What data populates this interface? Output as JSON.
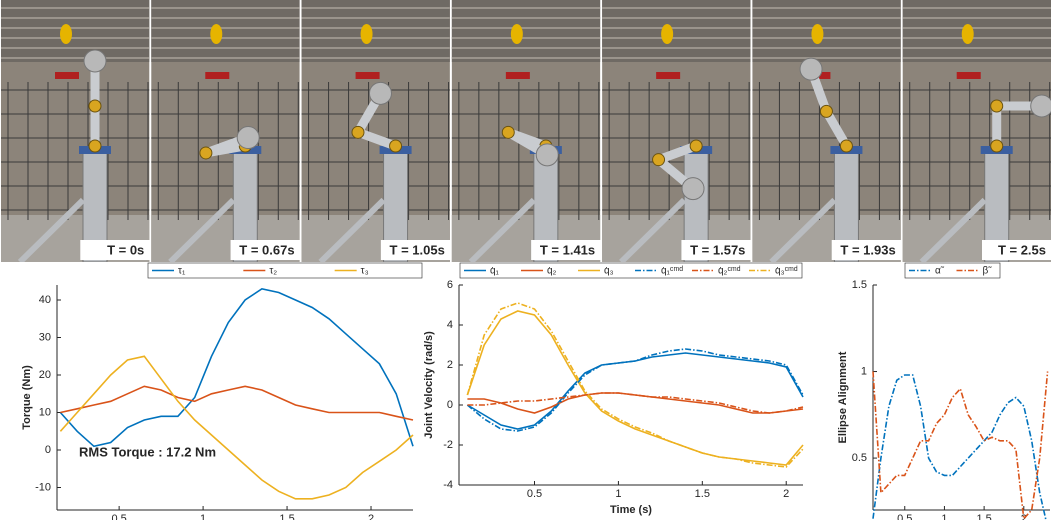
{
  "frames": [
    {
      "label": "T = 0s"
    },
    {
      "label": "T = 0.67s"
    },
    {
      "label": "T = 1.05s"
    },
    {
      "label": "T = 1.41s"
    },
    {
      "label": "T = 1.57s"
    },
    {
      "label": "T = 1.93s"
    },
    {
      "label": "T = 2.5s"
    }
  ],
  "chart_data": [
    {
      "type": "line",
      "y_label": "Torque (Nm)",
      "annotation": "RMS Torque : 17.2 Nm",
      "x": [
        0.15,
        0.25,
        0.35,
        0.45,
        0.55,
        0.65,
        0.75,
        0.85,
        0.95,
        1.05,
        1.15,
        1.25,
        1.35,
        1.45,
        1.55,
        1.65,
        1.75,
        1.85,
        1.95,
        2.05,
        2.15,
        2.25
      ],
      "xlim": [
        0.13,
        2.25
      ],
      "xticks": [
        0.5,
        1,
        1.5,
        2
      ],
      "ylim": [
        -16,
        44
      ],
      "yticks": [
        -10,
        0,
        10,
        20,
        30,
        40
      ],
      "series": [
        {
          "name": "τ₁",
          "color": "#0072bd",
          "style": "solid",
          "values": [
            10,
            5,
            1,
            2,
            6,
            8,
            9,
            9,
            14,
            25,
            34,
            40,
            43,
            42,
            40,
            38,
            35,
            31,
            27,
            23,
            15,
            1
          ]
        },
        {
          "name": "τ₂",
          "color": "#d95319",
          "style": "solid",
          "values": [
            10,
            11,
            12,
            13,
            15,
            17,
            16,
            14,
            13,
            15,
            16,
            17,
            16,
            14,
            12,
            11,
            10,
            10,
            10,
            10,
            9,
            8
          ]
        },
        {
          "name": "τ₃",
          "color": "#edb120",
          "style": "solid",
          "values": [
            5,
            10,
            15,
            20,
            24,
            25,
            19,
            13,
            8,
            4,
            0,
            -4,
            -8,
            -11,
            -13,
            -13,
            -12,
            -10,
            -6,
            -3,
            0,
            4
          ]
        }
      ]
    },
    {
      "type": "line",
      "x_label": "Time (s)",
      "y_label": "Joint Velocity (rad/s)",
      "x": [
        0.1,
        0.2,
        0.3,
        0.4,
        0.5,
        0.6,
        0.7,
        0.8,
        0.9,
        1.0,
        1.1,
        1.2,
        1.3,
        1.4,
        1.5,
        1.6,
        1.7,
        1.8,
        1.9,
        2.0,
        2.1
      ],
      "xlim": [
        0.05,
        2.1
      ],
      "xticks": [
        0.5,
        1,
        1.5,
        2
      ],
      "ylim": [
        -4,
        6
      ],
      "yticks": [
        -4,
        -2,
        0,
        2,
        4,
        6
      ],
      "series": [
        {
          "name": "q̇₁",
          "color": "#0072bd",
          "style": "solid",
          "values": [
            0,
            -0.5,
            -1,
            -1.2,
            -1,
            -0.3,
            0.7,
            1.6,
            2,
            2.1,
            2.2,
            2.4,
            2.5,
            2.6,
            2.5,
            2.4,
            2.3,
            2.2,
            2.1,
            1.9,
            0.4
          ]
        },
        {
          "name": "q̇₂",
          "color": "#d95319",
          "style": "solid",
          "values": [
            0.3,
            0.3,
            0.1,
            -0.2,
            -0.4,
            -0.1,
            0.3,
            0.5,
            0.6,
            0.6,
            0.5,
            0.4,
            0.3,
            0.2,
            0.1,
            0,
            -0.2,
            -0.4,
            -0.4,
            -0.3,
            -0.2
          ]
        },
        {
          "name": "q̇₃",
          "color": "#edb120",
          "style": "solid",
          "values": [
            0.5,
            3,
            4.3,
            4.7,
            4.5,
            3.5,
            2,
            0.6,
            -0.3,
            -0.8,
            -1.2,
            -1.5,
            -1.8,
            -2.1,
            -2.4,
            -2.6,
            -2.7,
            -2.8,
            -2.9,
            -3,
            -2
          ]
        },
        {
          "name": "q̇₁ᶜᵐᵈ",
          "color": "#0072bd",
          "style": "dashdot",
          "values": [
            0,
            -0.7,
            -1.2,
            -1.3,
            -1.1,
            -0.4,
            0.6,
            1.5,
            2,
            2.1,
            2.2,
            2.5,
            2.7,
            2.8,
            2.7,
            2.5,
            2.4,
            2.3,
            2.2,
            2,
            0.5
          ]
        },
        {
          "name": "q̇₂ᶜᵐᵈ",
          "color": "#d95319",
          "style": "dashdot",
          "values": [
            0,
            0,
            0.1,
            0.2,
            0.2,
            0.3,
            0.4,
            0.5,
            0.6,
            0.6,
            0.5,
            0.4,
            0.4,
            0.3,
            0.2,
            0.1,
            -0.1,
            -0.3,
            -0.4,
            -0.3,
            -0.1
          ]
        },
        {
          "name": "q̇₃ᶜᵐᵈ",
          "color": "#edb120",
          "style": "dashdot",
          "values": [
            0.5,
            3.5,
            4.8,
            5.1,
            4.8,
            3.7,
            2.2,
            0.7,
            -0.2,
            -0.7,
            -1.1,
            -1.4,
            -1.8,
            -2.1,
            -2.4,
            -2.6,
            -2.7,
            -2.9,
            -3,
            -3.1,
            -2.2
          ]
        }
      ]
    },
    {
      "type": "line",
      "y_label": "Ellipse Alignment",
      "x": [
        0.1,
        0.2,
        0.3,
        0.4,
        0.5,
        0.6,
        0.7,
        0.8,
        0.9,
        1.0,
        1.1,
        1.2,
        1.3,
        1.4,
        1.5,
        1.6,
        1.7,
        1.8,
        1.9,
        2.0,
        2.1,
        2.2,
        2.3
      ],
      "xlim": [
        0.1,
        2.33
      ],
      "xticks": [
        0.5,
        1,
        1.5,
        2
      ],
      "ylim": [
        0.2,
        1.5
      ],
      "yticks": [
        0.5,
        1,
        1.5
      ],
      "series": [
        {
          "name": "α̃",
          "color": "#0072bd",
          "style": "dashdot",
          "values": [
            0.15,
            0.5,
            0.8,
            0.95,
            0.98,
            0.98,
            0.8,
            0.5,
            0.42,
            0.4,
            0.4,
            0.45,
            0.5,
            0.55,
            0.6,
            0.65,
            0.75,
            0.82,
            0.85,
            0.8,
            0.6,
            0.3,
            0.1
          ]
        },
        {
          "name": "β̃",
          "color": "#d95319",
          "style": "dashdot",
          "values": [
            1,
            0.3,
            0.35,
            0.4,
            0.4,
            0.5,
            0.6,
            0.6,
            0.7,
            0.75,
            0.85,
            0.9,
            0.75,
            0.68,
            0.6,
            0.62,
            0.6,
            0.6,
            0.55,
            0.15,
            0.2,
            0.5,
            1
          ]
        }
      ]
    }
  ]
}
